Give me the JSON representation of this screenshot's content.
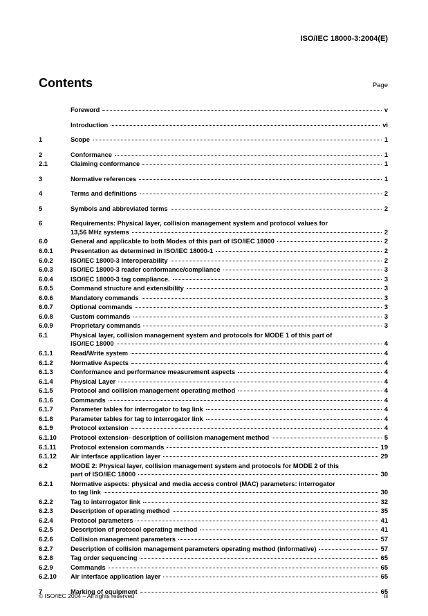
{
  "doc_id": "ISO/IEC 18000-3:2004(E)",
  "contents_title": "Contents",
  "page_label": "Page",
  "footer_left": "© ISO/IEC 2004 – All rights reserved",
  "footer_right": "iii",
  "toc": [
    {
      "num": "",
      "title": "Foreword",
      "page": "v",
      "gap_before": false
    },
    {
      "num": "",
      "title": "Introduction",
      "page": "vi",
      "gap_before": true
    },
    {
      "num": "1",
      "title": "Scope",
      "page": "1",
      "gap_before": true
    },
    {
      "num": "2",
      "title": "Conformance",
      "page": "1",
      "gap_before": true
    },
    {
      "num": "2.1",
      "title": "Claiming conformance",
      "page": "1",
      "gap_before": false
    },
    {
      "num": "3",
      "title": "Normative references",
      "page": "1",
      "gap_before": true
    },
    {
      "num": "4",
      "title": "Terms and definitions",
      "page": "2",
      "gap_before": true
    },
    {
      "num": "5",
      "title": "Symbols and abbreviated terms",
      "page": "2",
      "gap_before": true
    },
    {
      "num": "6",
      "title": "Requirements: Physical layer, collision management system and protocol values for",
      "title2": "13,56 MHz systems",
      "page": "2",
      "gap_before": true,
      "multi": true
    },
    {
      "num": "6.0",
      "title": "General and applicable to both Modes of this part of ISO/IEC 18000",
      "page": "2",
      "gap_before": false
    },
    {
      "num": "6.0.1",
      "title": "Presentation as determined in ISO/IEC 18000-1",
      "page": "2",
      "gap_before": false
    },
    {
      "num": "6.0.2",
      "title": "ISO/IEC 18000-3 Interoperability",
      "page": "2",
      "gap_before": false
    },
    {
      "num": "6.0.3",
      "title": "ISO/IEC 18000-3 reader conformance/compliance",
      "page": "3",
      "gap_before": false
    },
    {
      "num": "6.0.4",
      "title": "ISO/IEC 18000-3 tag compliance.",
      "page": "3",
      "gap_before": false
    },
    {
      "num": "6.0.5",
      "title": "Command structure and extensibility",
      "page": "3",
      "gap_before": false
    },
    {
      "num": "6.0.6",
      "title": "Mandatory commands",
      "page": "3",
      "gap_before": false
    },
    {
      "num": "6.0.7",
      "title": "Optional commands",
      "page": "3",
      "gap_before": false
    },
    {
      "num": "6.0.8",
      "title": "Custom commands",
      "page": "3",
      "gap_before": false
    },
    {
      "num": "6.0.9",
      "title": "Proprietary commands",
      "page": "3",
      "gap_before": false
    },
    {
      "num": "6.1",
      "title": "Physical layer, collision management system and protocols for MODE 1 of this part of",
      "title2": "ISO/IEC 18000",
      "page": "4",
      "gap_before": false,
      "multi": true
    },
    {
      "num": "6.1.1",
      "title": "Read/Write system",
      "page": "4",
      "gap_before": false
    },
    {
      "num": "6.1.2",
      "title": "Normative Aspects",
      "page": "4",
      "gap_before": false
    },
    {
      "num": "6.1.3",
      "title": "Conformance and performance measurement aspects",
      "page": "4",
      "gap_before": false
    },
    {
      "num": "6.1.4",
      "title": "Physical Layer",
      "page": "4",
      "gap_before": false
    },
    {
      "num": "6.1.5",
      "title": "Protocol and collision management operating method",
      "page": "4",
      "gap_before": false
    },
    {
      "num": "6.1.6",
      "title": "Commands",
      "page": "4",
      "gap_before": false
    },
    {
      "num": "6.1.7",
      "title": "Parameter tables for interrogator to tag link",
      "page": "4",
      "gap_before": false
    },
    {
      "num": "6.1.8",
      "title": "Parameter tables for tag to interrogator link",
      "page": "4",
      "gap_before": false
    },
    {
      "num": "6.1.9",
      "title": "Protocol extension",
      "page": "4",
      "gap_before": false
    },
    {
      "num": "6.1.10",
      "title": "Protocol extension- description of  collision management method",
      "page": "5",
      "gap_before": false
    },
    {
      "num": "6.1.11",
      "title": "Protocol extension commands",
      "page": "19",
      "gap_before": false
    },
    {
      "num": "6.1.12",
      "title": "Air interface application layer",
      "page": "29",
      "gap_before": false
    },
    {
      "num": "6.2",
      "title": "MODE 2: Physical layer, collision management system  and protocols for MODE 2 of this",
      "title2": "part of ISO/IEC 18000",
      "page": "30",
      "gap_before": false,
      "multi": true
    },
    {
      "num": "6.2.1",
      "title": "Normative aspects:  physical and media access control (MAC) parameters: interrogator",
      "title2": "to tag link",
      "page": "30",
      "gap_before": false,
      "multi": true
    },
    {
      "num": "6.2.2",
      "title": "Tag to interrogator link",
      "page": "32",
      "gap_before": false
    },
    {
      "num": "6.2.3",
      "title": "Description of operating method",
      "page": "35",
      "gap_before": false
    },
    {
      "num": "6.2.4",
      "title": "Protocol parameters",
      "page": "41",
      "gap_before": false
    },
    {
      "num": "6.2.5",
      "title": "Description of protocol operating method",
      "page": "41",
      "gap_before": false
    },
    {
      "num": "6.2.6",
      "title": "Collision management parameters",
      "page": "57",
      "gap_before": false
    },
    {
      "num": "6.2.7",
      "title": "Description of collision management parameters operating method (informative)",
      "page": "57",
      "gap_before": false
    },
    {
      "num": "6.2.8",
      "title": "Tag order sequencing",
      "page": "65",
      "gap_before": false
    },
    {
      "num": "6.2.9",
      "title": "Commands",
      "page": "65",
      "gap_before": false
    },
    {
      "num": "6.2.10",
      "title": "Air interface application layer",
      "page": "65",
      "gap_before": false
    },
    {
      "num": "7",
      "title": "Marking of equipment",
      "page": "65",
      "gap_before": true
    }
  ]
}
